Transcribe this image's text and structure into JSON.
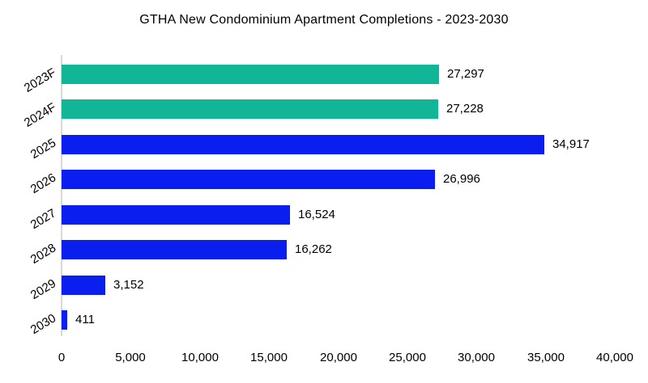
{
  "chart_data": {
    "type": "bar",
    "orientation": "horizontal",
    "title": "GTHA New Condominium Apartment Completions - 2023-2030",
    "categories": [
      "2023F",
      "2024F",
      "2025",
      "2026",
      "2027",
      "2028",
      "2029",
      "2030"
    ],
    "values": [
      27297,
      27228,
      34917,
      26996,
      16524,
      16262,
      3152,
      411
    ],
    "value_labels": [
      "27,297",
      "27,228",
      "34,917",
      "26,996",
      "16,524",
      "16,262",
      "3,152",
      "411"
    ],
    "bar_colors": [
      "#10B696",
      "#10B696",
      "#0A1EF0",
      "#0A1EF0",
      "#0A1EF0",
      "#0A1EF0",
      "#0A1EF0",
      "#0A1EF0"
    ],
    "xlabel": "",
    "ylabel": "",
    "xlim": [
      0,
      40000
    ],
    "x_ticks": [
      "0",
      "5,000",
      "10,000",
      "15,000",
      "20,000",
      "25,000",
      "30,000",
      "35,000",
      "40,000"
    ],
    "x_tick_values": [
      0,
      5000,
      10000,
      15000,
      20000,
      25000,
      30000,
      35000,
      40000
    ],
    "grid": false,
    "legend": false,
    "colors": {
      "forecast_teal": "#10B696",
      "projection_blue": "#0A1EF0",
      "axis_line": "#D9D9D9",
      "text": "#000000",
      "background": "#FFFFFF"
    }
  }
}
